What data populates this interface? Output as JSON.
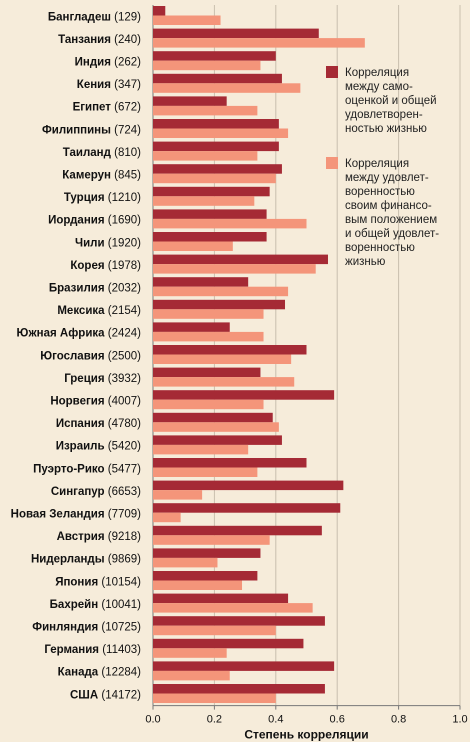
{
  "chart_data": {
    "type": "bar",
    "orientation": "horizontal",
    "title": "",
    "xlabel": "Степень корреляции",
    "ylabel": "",
    "xlim": [
      0,
      1.0
    ],
    "xticks": [
      "0.0",
      "0.2",
      "0.4",
      "0.6",
      "0.8",
      "1.0"
    ],
    "grid": true,
    "legend_position": "right",
    "categories": [
      {
        "name": "Бангладеш",
        "count": "(129)"
      },
      {
        "name": "Танзания",
        "count": "(240)"
      },
      {
        "name": "Индия",
        "count": "(262)"
      },
      {
        "name": "Кения",
        "count": "(347)"
      },
      {
        "name": "Египет",
        "count": "(672)"
      },
      {
        "name": "Филиппины",
        "count": "(724)"
      },
      {
        "name": "Таиланд",
        "count": "(810)"
      },
      {
        "name": "Камерун",
        "count": "(845)"
      },
      {
        "name": "Турция",
        "count": "(1210)"
      },
      {
        "name": "Иордания",
        "count": "(1690)"
      },
      {
        "name": "Чили",
        "count": "(1920)"
      },
      {
        "name": "Корея",
        "count": "(1978)"
      },
      {
        "name": "Бразилия",
        "count": "(2032)"
      },
      {
        "name": "Мексика",
        "count": "(2154)"
      },
      {
        "name": "Южная Африка",
        "count": "(2424)"
      },
      {
        "name": "Югославия",
        "count": "(2500)"
      },
      {
        "name": "Греция",
        "count": "(3932)"
      },
      {
        "name": "Норвегия",
        "count": "(4007)"
      },
      {
        "name": "Испания",
        "count": "(4780)"
      },
      {
        "name": "Израиль",
        "count": "(5420)"
      },
      {
        "name": "Пуэрто-Рико",
        "count": "(5477)"
      },
      {
        "name": "Сингапур",
        "count": "(6653)"
      },
      {
        "name": "Новая Зеландия",
        "count": "(7709)"
      },
      {
        "name": "Австрия",
        "count": "(9218)"
      },
      {
        "name": "Нидерланды",
        "count": "(9869)"
      },
      {
        "name": "Япония",
        "count": "(10154)"
      },
      {
        "name": "Бахрейн",
        "count": "(10041)"
      },
      {
        "name": "Финляндия",
        "count": "(10725)"
      },
      {
        "name": "Германия",
        "count": "(11403)"
      },
      {
        "name": "Канада",
        "count": "(12284)"
      },
      {
        "name": "США",
        "count": "(14172)"
      }
    ],
    "series": [
      {
        "name": "Корреляция между само-оценкой и общей удовлетворен-ностью жизнью",
        "legend_lines": [
          "Корреляция",
          "между само-",
          "оценкой и  общей",
          "удовлетворен-",
          "ностью жизнью"
        ],
        "color": "#a52a35",
        "values": [
          0.04,
          0.54,
          0.4,
          0.42,
          0.24,
          0.41,
          0.41,
          0.42,
          0.38,
          0.37,
          0.37,
          0.57,
          0.31,
          0.43,
          0.25,
          0.5,
          0.35,
          0.59,
          0.39,
          0.42,
          0.5,
          0.62,
          0.61,
          0.55,
          0.35,
          0.34,
          0.44,
          0.56,
          0.49,
          0.59,
          0.56
        ]
      },
      {
        "name": "Корреляция между удовлет-воренностью своим финансо-вым положением и общей удовлет-воренностью жизнью",
        "legend_lines": [
          "Корреляция",
          "между удовлет-",
          "воренностью",
          "своим финансо-",
          "вым положением",
          "и  общей удовлет-",
          "воренностью",
          "жизнью"
        ],
        "color": "#f4957a",
        "values": [
          0.22,
          0.69,
          0.35,
          0.48,
          0.34,
          0.44,
          0.34,
          0.4,
          0.33,
          0.5,
          0.26,
          0.53,
          0.44,
          0.36,
          0.36,
          0.45,
          0.46,
          0.36,
          0.41,
          0.31,
          0.34,
          0.16,
          0.09,
          0.38,
          0.21,
          0.29,
          0.52,
          0.4,
          0.24,
          0.25,
          0.4
        ]
      }
    ]
  }
}
